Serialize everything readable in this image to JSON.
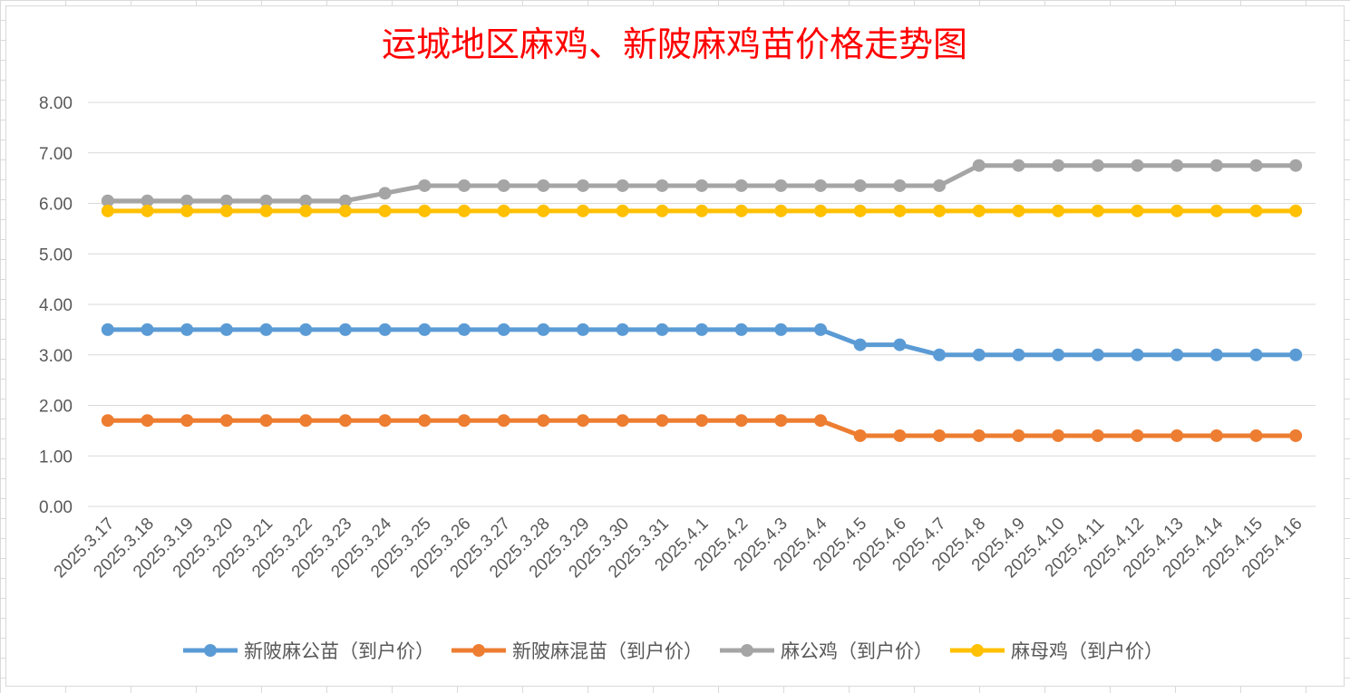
{
  "chart_data": {
    "type": "line",
    "title": "运城地区麻鸡、新陂麻鸡苗价格走势图",
    "xlabel": "",
    "ylabel": "",
    "ylim": [
      0,
      8
    ],
    "yticks": [
      "0.00",
      "1.00",
      "2.00",
      "3.00",
      "4.00",
      "5.00",
      "6.00",
      "7.00",
      "8.00"
    ],
    "grid": true,
    "legend_position": "bottom",
    "categories": [
      "2025.3.17",
      "2025.3.18",
      "2025.3.19",
      "2025.3.20",
      "2025.3.21",
      "2025.3.22",
      "2025.3.23",
      "2025.3.24",
      "2025.3.25",
      "2025.3.26",
      "2025.3.27",
      "2025.3.28",
      "2025.3.29",
      "2025.3.30",
      "2025.3.31",
      "2025.4.1",
      "2025.4.2",
      "2025.4.3",
      "2025.4.4",
      "2025.4.5",
      "2025.4.6",
      "2025.4.7",
      "2025.4.8",
      "2025.4.9",
      "2025.4.10",
      "2025.4.11",
      "2025.4.12",
      "2025.4.13",
      "2025.4.14",
      "2025.4.15",
      "2025.4.16"
    ],
    "series": [
      {
        "name": "新陂麻公苗（到户价）",
        "color": "#5b9bd5",
        "values": [
          3.5,
          3.5,
          3.5,
          3.5,
          3.5,
          3.5,
          3.5,
          3.5,
          3.5,
          3.5,
          3.5,
          3.5,
          3.5,
          3.5,
          3.5,
          3.5,
          3.5,
          3.5,
          3.5,
          3.2,
          3.2,
          3.0,
          3.0,
          3.0,
          3.0,
          3.0,
          3.0,
          3.0,
          3.0,
          3.0,
          3.0
        ]
      },
      {
        "name": "新陂麻混苗（到户价）",
        "color": "#ed7d31",
        "values": [
          1.7,
          1.7,
          1.7,
          1.7,
          1.7,
          1.7,
          1.7,
          1.7,
          1.7,
          1.7,
          1.7,
          1.7,
          1.7,
          1.7,
          1.7,
          1.7,
          1.7,
          1.7,
          1.7,
          1.4,
          1.4,
          1.4,
          1.4,
          1.4,
          1.4,
          1.4,
          1.4,
          1.4,
          1.4,
          1.4,
          1.4
        ]
      },
      {
        "name": "麻公鸡（到户价）",
        "color": "#a5a5a5",
        "values": [
          6.05,
          6.05,
          6.05,
          6.05,
          6.05,
          6.05,
          6.05,
          6.2,
          6.35,
          6.35,
          6.35,
          6.35,
          6.35,
          6.35,
          6.35,
          6.35,
          6.35,
          6.35,
          6.35,
          6.35,
          6.35,
          6.35,
          6.75,
          6.75,
          6.75,
          6.75,
          6.75,
          6.75,
          6.75,
          6.75,
          6.75
        ]
      },
      {
        "name": "麻母鸡（到户价）",
        "color": "#ffc000",
        "values": [
          5.85,
          5.85,
          5.85,
          5.85,
          5.85,
          5.85,
          5.85,
          5.85,
          5.85,
          5.85,
          5.85,
          5.85,
          5.85,
          5.85,
          5.85,
          5.85,
          5.85,
          5.85,
          5.85,
          5.85,
          5.85,
          5.85,
          5.85,
          5.85,
          5.85,
          5.85,
          5.85,
          5.85,
          5.85,
          5.85,
          5.85
        ]
      }
    ]
  }
}
